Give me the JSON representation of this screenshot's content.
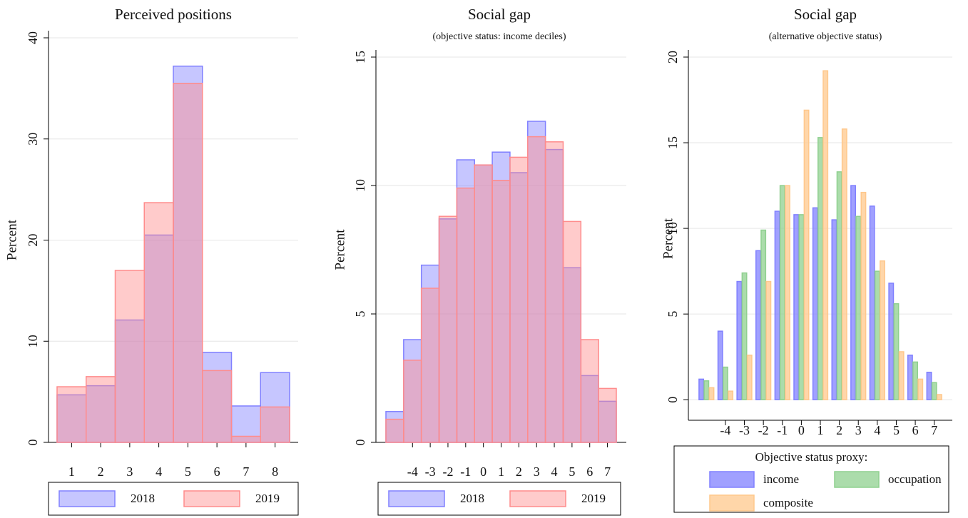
{
  "chart_data": [
    {
      "type": "bar",
      "barmode": "overlay",
      "title": "Perceived positions",
      "ylabel": "Percent",
      "categories": [
        1,
        2,
        3,
        4,
        5,
        6,
        7,
        8
      ],
      "series": [
        {
          "name": "2018",
          "color": "#8080ff",
          "values": [
            4.7,
            5.6,
            12.1,
            20.5,
            37.2,
            8.9,
            3.6,
            6.9
          ]
        },
        {
          "name": "2019",
          "color": "#ff8c8c",
          "values": [
            5.5,
            6.5,
            17.0,
            23.7,
            35.5,
            7.1,
            0.6,
            3.5
          ]
        }
      ],
      "ylim": [
        0,
        40
      ],
      "yticks": [
        0,
        10,
        20,
        30,
        40
      ],
      "grid": true
    },
    {
      "type": "bar",
      "barmode": "overlay",
      "title": "Social gap",
      "subtitle": "(objective status: income deciles)",
      "ylabel": "Percent",
      "categories": [
        null,
        -4,
        -3,
        -2,
        -1,
        0,
        1,
        2,
        3,
        4,
        5,
        6,
        7
      ],
      "series": [
        {
          "name": "2018",
          "color": "#8080ff",
          "values": [
            1.2,
            4.0,
            6.9,
            8.7,
            11.0,
            10.8,
            11.3,
            10.5,
            12.5,
            11.4,
            6.8,
            2.6,
            1.6
          ]
        },
        {
          "name": "2019",
          "color": "#ff8c8c",
          "values": [
            0.9,
            3.2,
            6.0,
            8.8,
            9.9,
            10.8,
            10.2,
            11.1,
            11.9,
            11.7,
            8.6,
            4.0,
            2.1
          ]
        }
      ],
      "ylim": [
        0,
        15
      ],
      "yticks": [
        0,
        5,
        10,
        15
      ],
      "grid": true
    },
    {
      "type": "bar",
      "barmode": "group",
      "title": "Social gap",
      "subtitle": "(alternative objective status)",
      "ylabel": "Percent",
      "legend_title": "Objective status proxy:",
      "categories": [
        null,
        -4,
        -3,
        -2,
        -1,
        0,
        1,
        2,
        3,
        4,
        5,
        6,
        7
      ],
      "series": [
        {
          "name": "income",
          "color": "#8080ff",
          "values": [
            1.2,
            4.0,
            6.9,
            8.7,
            11.0,
            10.8,
            11.2,
            10.5,
            12.5,
            11.3,
            6.8,
            2.6,
            1.6
          ]
        },
        {
          "name": "occupation",
          "color": "#8fd08f",
          "values": [
            1.1,
            1.9,
            7.4,
            9.9,
            12.5,
            10.8,
            15.3,
            13.3,
            10.7,
            7.5,
            5.6,
            2.2,
            1.0
          ]
        },
        {
          "name": "composite",
          "color": "#ffc88c",
          "values": [
            0.7,
            0.5,
            2.6,
            6.9,
            12.5,
            16.9,
            19.2,
            15.8,
            12.1,
            8.1,
            2.8,
            1.2,
            0.3
          ]
        }
      ],
      "ylim": [
        -1.2,
        20
      ],
      "yticks": [
        0,
        5,
        10,
        15,
        20
      ],
      "grid": true
    }
  ]
}
